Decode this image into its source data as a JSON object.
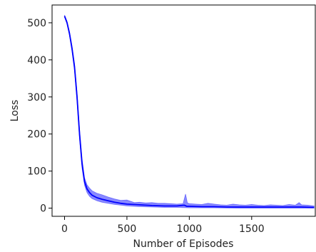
{
  "chart_data": {
    "type": "line",
    "title": "",
    "xlabel": "Number of Episodes",
    "ylabel": "Loss",
    "xlim": [
      -100,
      2010
    ],
    "ylim": [
      -22,
      548
    ],
    "xticks": [
      0,
      500,
      1000,
      1500
    ],
    "yticks": [
      0,
      100,
      200,
      300,
      400,
      500
    ],
    "grid": false,
    "legend": "none",
    "colors": {
      "line": "#0000ff",
      "band": "#3b3bff"
    },
    "series": [
      {
        "values": [
          [
            0,
            518
          ],
          [
            20,
            500
          ],
          [
            40,
            470
          ],
          [
            60,
            430
          ],
          [
            80,
            380
          ],
          [
            100,
            300
          ],
          [
            120,
            200
          ],
          [
            140,
            120
          ],
          [
            160,
            72
          ],
          [
            180,
            52
          ],
          [
            200,
            42
          ],
          [
            220,
            35
          ],
          [
            260,
            28
          ],
          [
            300,
            24
          ],
          [
            350,
            20
          ],
          [
            400,
            16
          ],
          [
            450,
            13
          ],
          [
            500,
            11
          ],
          [
            600,
            9
          ],
          [
            700,
            7
          ],
          [
            800,
            6
          ],
          [
            900,
            6
          ],
          [
            960,
            8
          ],
          [
            980,
            5
          ],
          [
            1000,
            5
          ],
          [
            1100,
            4
          ],
          [
            1200,
            4
          ],
          [
            1300,
            3
          ],
          [
            1400,
            3
          ],
          [
            1500,
            3
          ],
          [
            1600,
            3
          ],
          [
            1700,
            3
          ],
          [
            1800,
            3
          ],
          [
            1900,
            3
          ],
          [
            2000,
            2
          ]
        ],
        "band_upper": [
          [
            0,
            521
          ],
          [
            20,
            504
          ],
          [
            40,
            476
          ],
          [
            60,
            437
          ],
          [
            80,
            390
          ],
          [
            100,
            312
          ],
          [
            120,
            214
          ],
          [
            140,
            134
          ],
          [
            160,
            82
          ],
          [
            180,
            63
          ],
          [
            200,
            54
          ],
          [
            220,
            47
          ],
          [
            260,
            40
          ],
          [
            300,
            36
          ],
          [
            350,
            30
          ],
          [
            400,
            25
          ],
          [
            450,
            21
          ],
          [
            500,
            22
          ],
          [
            560,
            15
          ],
          [
            600,
            16
          ],
          [
            650,
            14
          ],
          [
            700,
            15
          ],
          [
            750,
            13
          ],
          [
            800,
            13
          ],
          [
            850,
            12
          ],
          [
            900,
            11
          ],
          [
            950,
            12
          ],
          [
            970,
            38
          ],
          [
            985,
            14
          ],
          [
            1000,
            12
          ],
          [
            1050,
            11
          ],
          [
            1100,
            10
          ],
          [
            1150,
            13
          ],
          [
            1200,
            11
          ],
          [
            1250,
            9
          ],
          [
            1300,
            8
          ],
          [
            1350,
            11
          ],
          [
            1400,
            9
          ],
          [
            1450,
            8
          ],
          [
            1500,
            10
          ],
          [
            1550,
            8
          ],
          [
            1600,
            7
          ],
          [
            1650,
            9
          ],
          [
            1700,
            8
          ],
          [
            1750,
            7
          ],
          [
            1800,
            10
          ],
          [
            1850,
            8
          ],
          [
            1880,
            15
          ],
          [
            1900,
            9
          ],
          [
            1950,
            8
          ],
          [
            2000,
            6
          ]
        ],
        "band_lower": [
          [
            0,
            515
          ],
          [
            20,
            497
          ],
          [
            40,
            465
          ],
          [
            60,
            423
          ],
          [
            80,
            370
          ],
          [
            100,
            288
          ],
          [
            120,
            188
          ],
          [
            140,
            108
          ],
          [
            160,
            62
          ],
          [
            180,
            42
          ],
          [
            200,
            32
          ],
          [
            220,
            26
          ],
          [
            260,
            20
          ],
          [
            300,
            16
          ],
          [
            350,
            13
          ],
          [
            400,
            10
          ],
          [
            450,
            8
          ],
          [
            500,
            6
          ],
          [
            600,
            4
          ],
          [
            700,
            3
          ],
          [
            800,
            2
          ],
          [
            900,
            2
          ],
          [
            1000,
            1
          ],
          [
            1200,
            1
          ],
          [
            1400,
            0
          ],
          [
            1600,
            0
          ],
          [
            1800,
            0
          ],
          [
            2000,
            0
          ]
        ]
      }
    ]
  }
}
